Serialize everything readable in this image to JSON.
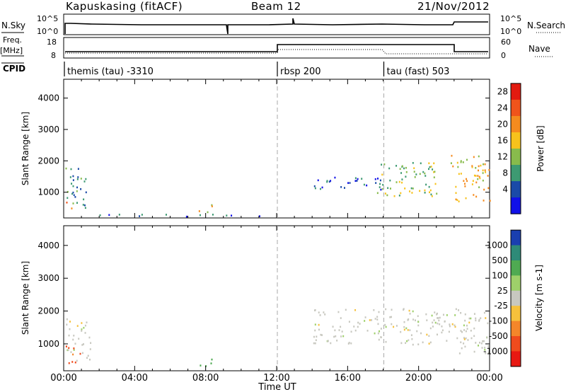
{
  "header": {
    "station": "Kapuskasing (fitACF)",
    "beam": "Beam 12",
    "date": "21/Nov/2012"
  },
  "noise_panel": {
    "left_label": "N.Sky",
    "left_ticks": [
      "10^5",
      "10^0"
    ],
    "right_ticks": [
      "10^5",
      "10^0"
    ],
    "right_label": "N.Search"
  },
  "freq_panel": {
    "left_label_1": "Freq.",
    "left_label_2": "[MHz]",
    "left_ticks": [
      "18",
      "8"
    ],
    "right_ticks": [
      "60",
      "0"
    ],
    "right_label": "Nave"
  },
  "cpid_panel": {
    "label": "CPID",
    "segments": [
      {
        "start_hour": 0.0,
        "text": "themis (tau) -3310"
      },
      {
        "start_hour": 12.0,
        "text": "rbsp 200"
      },
      {
        "start_hour": 18.0,
        "text": "tau (fast) 503"
      }
    ]
  },
  "time_axis": {
    "label": "Time UT",
    "ticks": [
      "00:00",
      "04:00",
      "08:00",
      "12:00",
      "16:00",
      "20:00",
      "00:00"
    ]
  },
  "chart_data": [
    {
      "type": "heatmap",
      "title": "Power",
      "xlabel": "Time UT",
      "ylabel": "Slant Range [km]",
      "xlim_hours": [
        0,
        24
      ],
      "ylim_km": [
        180,
        4600
      ],
      "y_ticks": [
        "1000",
        "2000",
        "3000",
        "4000"
      ],
      "colorbar_label": "Power [dB]",
      "colorbar_ticks": [
        "28",
        "24",
        "20",
        "16",
        "12",
        "8",
        "4"
      ],
      "colorbar_colors": [
        "#e21a10",
        "#f0541b",
        "#f58b1e",
        "#f7c21c",
        "#88bb4c",
        "#3d9a72",
        "#1a4aa8",
        "#1010e8"
      ],
      "echo_regions": [
        {
          "t_start": 0.1,
          "t_end": 1.3,
          "r_min": 450,
          "r_max": 1900,
          "dominant_power_db": 12
        },
        {
          "t_start": 0.1,
          "t_end": 0.6,
          "r_min": 480,
          "r_max": 700,
          "dominant_power_db": 22
        },
        {
          "t_start": 7.6,
          "t_end": 8.4,
          "r_min": 350,
          "r_max": 650,
          "dominant_power_db": 18
        },
        {
          "t_start": 2.0,
          "t_end": 12.0,
          "r_min": 250,
          "r_max": 320,
          "dominant_power_db": 8
        },
        {
          "t_start": 14.0,
          "t_end": 18.0,
          "r_min": 1100,
          "r_max": 1500,
          "dominant_power_db": 6
        },
        {
          "t_start": 17.5,
          "t_end": 21.0,
          "r_min": 900,
          "r_max": 2000,
          "dominant_power_db": 14
        },
        {
          "t_start": 21.8,
          "t_end": 24.0,
          "r_min": 700,
          "r_max": 2200,
          "dominant_power_db": 20
        }
      ]
    },
    {
      "type": "heatmap",
      "title": "Velocity",
      "xlabel": "Time UT",
      "ylabel": "Slant Range [km]",
      "xlim_hours": [
        0,
        24
      ],
      "ylim_km": [
        180,
        4600
      ],
      "y_ticks": [
        "1000",
        "2000",
        "3000",
        "4000"
      ],
      "colorbar_label": "Velocity [m s-1]",
      "colorbar_ticks": [
        "1000",
        "500",
        "100",
        "25",
        "-25",
        "-100",
        "-500",
        "-1000"
      ],
      "colorbar_colors": [
        "#1a3fb0",
        "#2e8a78",
        "#4faa52",
        "#9ed06a",
        "#c8c8c0",
        "#f6c13c",
        "#f4862a",
        "#ef4b1d",
        "#e81812"
      ],
      "echo_regions": [
        {
          "t_start": 0.1,
          "t_end": 1.5,
          "r_min": 450,
          "r_max": 1800,
          "dominant_velocity_ms": 0
        },
        {
          "t_start": 0.1,
          "t_end": 0.9,
          "r_min": 400,
          "r_max": 1000,
          "dominant_velocity_ms": -500
        },
        {
          "t_start": 7.6,
          "t_end": 8.4,
          "r_min": 350,
          "r_max": 650,
          "dominant_velocity_ms": 100
        },
        {
          "t_start": 14.0,
          "t_end": 24.0,
          "r_min": 1000,
          "r_max": 2100,
          "dominant_velocity_ms": 0
        },
        {
          "t_start": 21.8,
          "t_end": 24.0,
          "r_min": 700,
          "r_max": 1000,
          "dominant_velocity_ms": 0
        }
      ]
    }
  ]
}
